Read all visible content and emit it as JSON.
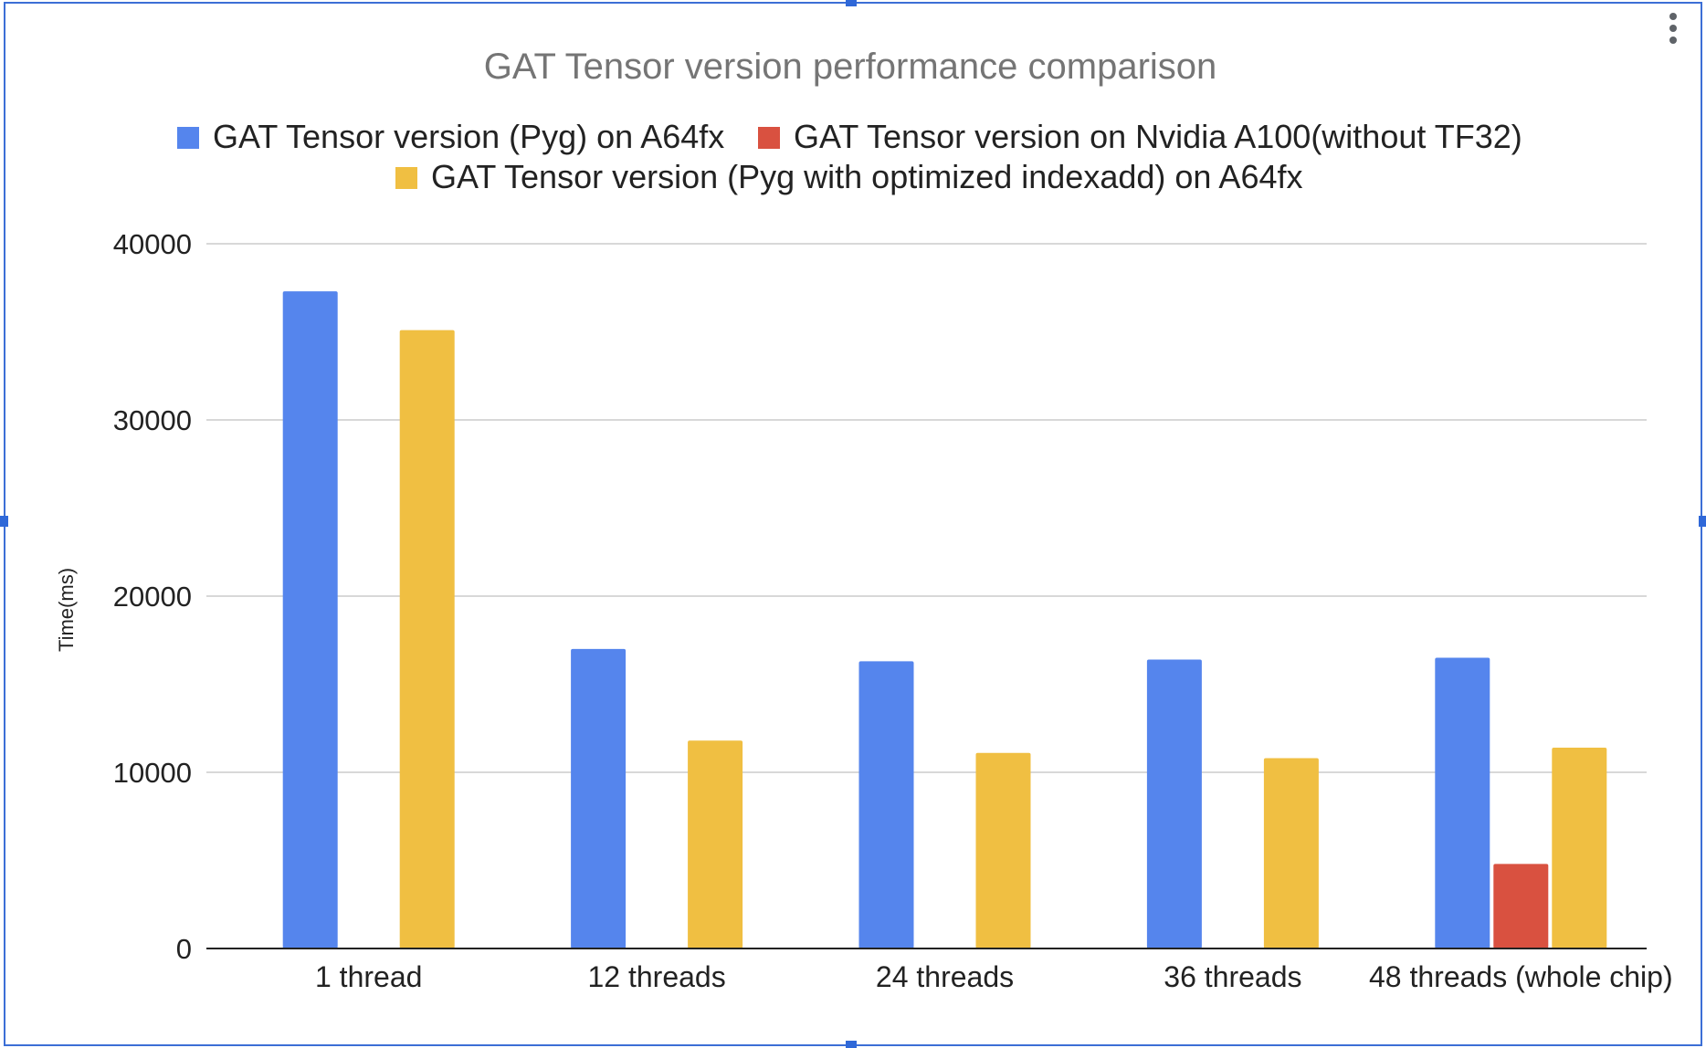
{
  "chart_data": {
    "type": "bar",
    "title": "GAT Tensor version performance comparison",
    "xlabel": "",
    "ylabel": "Time(ms)",
    "ylim": [
      0,
      40000
    ],
    "yticks": [
      0,
      10000,
      20000,
      30000,
      40000
    ],
    "grid": true,
    "legend_position": "top",
    "categories": [
      "1 thread",
      "12 threads",
      "24 threads",
      "36 threads",
      "48 threads (whole chip)"
    ],
    "series": [
      {
        "name": "GAT Tensor version (Pyg) on A64fx",
        "color": "#5585ed",
        "values": [
          37300,
          17000,
          16300,
          16400,
          16500
        ]
      },
      {
        "name": "GAT Tensor version on Nvidia A100(without TF32)",
        "color": "#d95140",
        "values": [
          null,
          null,
          null,
          null,
          4800
        ]
      },
      {
        "name": "GAT Tensor version (Pyg with optimized indexadd) on A64fx",
        "color": "#f0bf42",
        "values": [
          35100,
          11800,
          11100,
          10800,
          11400
        ]
      }
    ]
  },
  "ui": {
    "frame_color": "#3c6fd6",
    "menu_icon": "vertical-dots-icon"
  }
}
